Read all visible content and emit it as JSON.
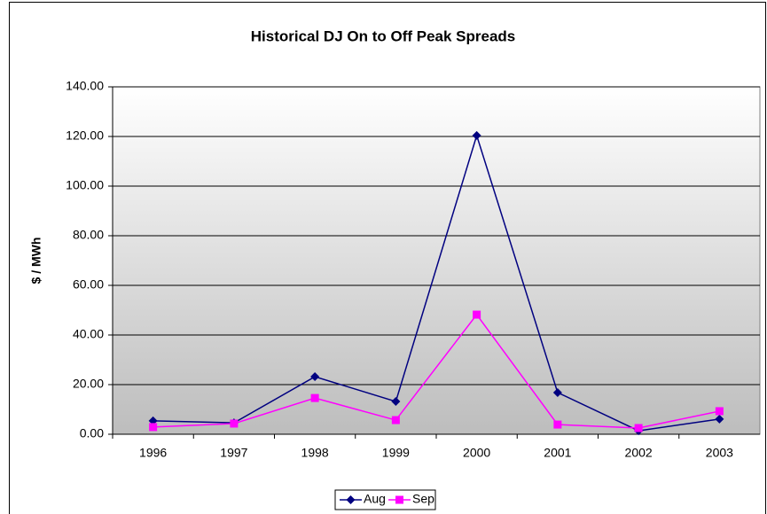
{
  "chart_data": {
    "type": "line",
    "title": "Historical DJ On to Off Peak Spreads",
    "y_label": "$ / MWh",
    "categories": [
      "1996",
      "1997",
      "1998",
      "1999",
      "2000",
      "2001",
      "2002",
      "2003"
    ],
    "series": [
      {
        "name": "Aug",
        "color": "#000080",
        "marker": "diamond",
        "values": [
          5.4,
          4.6,
          23.2,
          13.2,
          120.4,
          16.8,
          1.4,
          6.1
        ]
      },
      {
        "name": "Sep",
        "color": "#ff00ff",
        "marker": "square",
        "values": [
          2.9,
          4.3,
          14.6,
          5.7,
          48.2,
          3.9,
          2.5,
          9.3
        ]
      }
    ],
    "ylim": [
      0,
      140
    ],
    "yticks": [
      {
        "value": 0,
        "label": "0.00"
      },
      {
        "value": 20,
        "label": "20.00"
      },
      {
        "value": 40,
        "label": "40.00"
      },
      {
        "value": 60,
        "label": "60.00"
      },
      {
        "value": 80,
        "label": "80.00"
      },
      {
        "value": 100,
        "label": "100.00"
      },
      {
        "value": 120,
        "label": "120.00"
      },
      {
        "value": 140,
        "label": "140.00"
      }
    ],
    "grid": true,
    "legend": "bottom"
  }
}
